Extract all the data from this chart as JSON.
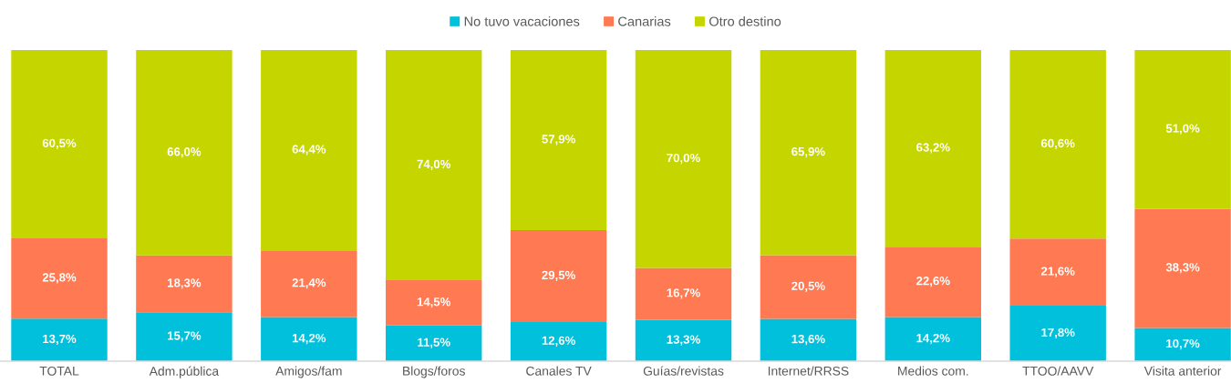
{
  "chart_data": {
    "type": "bar",
    "stacked": true,
    "categories": [
      "TOTAL",
      "Adm.pública",
      "Amigos/fam",
      "Blogs/foros",
      "Canales TV",
      "Guías/revistas",
      "Internet/RRSS",
      "Medios com.",
      "TTOO/AAVV",
      "Visita anterior"
    ],
    "series": [
      {
        "name": "No tuvo vacaciones",
        "color": "#00c0dc",
        "values": [
          13.7,
          15.7,
          14.2,
          11.5,
          12.6,
          13.3,
          13.6,
          14.2,
          17.8,
          10.7
        ],
        "value_labels": [
          "13,7%",
          "15,7%",
          "14,2%",
          "11,5%",
          "12,6%",
          "13,3%",
          "13,6%",
          "14,2%",
          "17,8%",
          "10,7%"
        ]
      },
      {
        "name": "Canarias",
        "color": "#ff7a52",
        "values": [
          25.8,
          18.3,
          21.4,
          14.5,
          29.5,
          16.7,
          20.5,
          22.6,
          21.6,
          38.3
        ],
        "value_labels": [
          "25,8%",
          "18,3%",
          "21,4%",
          "14,5%",
          "29,5%",
          "16,7%",
          "20,5%",
          "22,6%",
          "21,6%",
          "38,3%"
        ]
      },
      {
        "name": "Otro destino",
        "color": "#c5d500",
        "values": [
          60.5,
          66.0,
          64.4,
          74.0,
          57.9,
          70.0,
          65.9,
          63.2,
          60.6,
          51.0
        ],
        "value_labels": [
          "60,5%",
          "66,0%",
          "64,4%",
          "74,0%",
          "57,9%",
          "70,0%",
          "65,9%",
          "63,2%",
          "60,6%",
          "51,0%"
        ]
      }
    ],
    "ylim": [
      0,
      100
    ],
    "tick_labels": "x",
    "grid": false,
    "legend": "top"
  }
}
